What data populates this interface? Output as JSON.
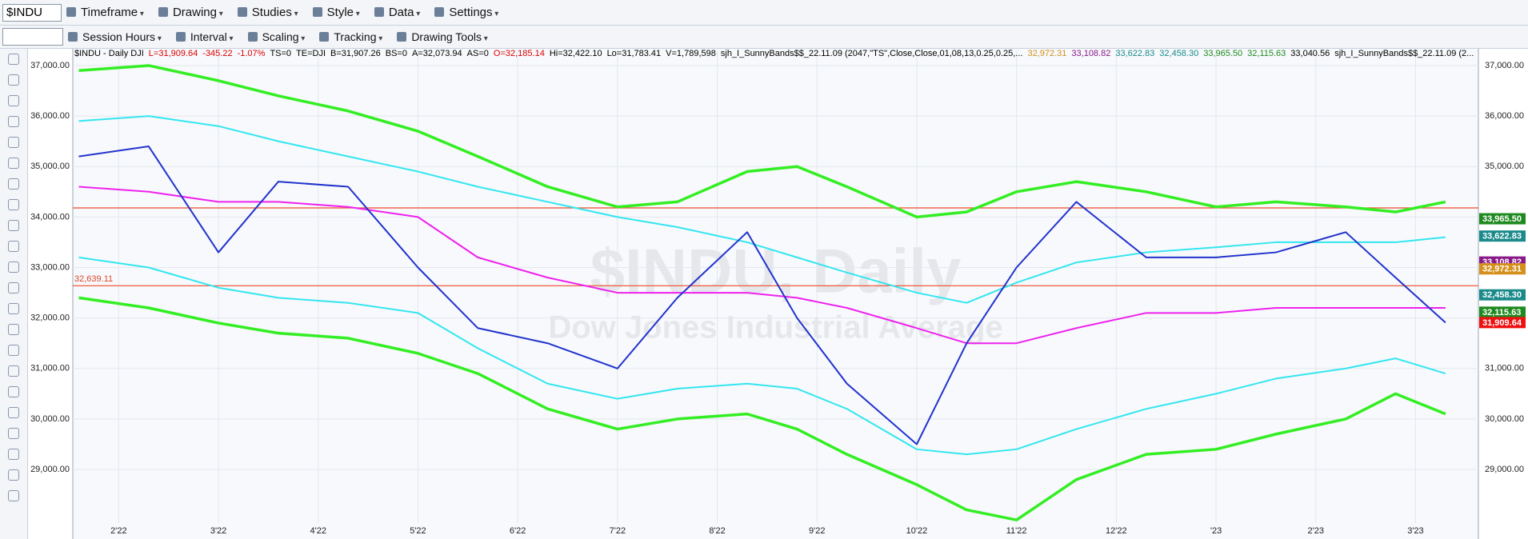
{
  "toolbar": {
    "symbol": "$INDU",
    "row1": [
      "Timeframe",
      "Drawing",
      "Studies",
      "Style",
      "Data",
      "Settings"
    ],
    "row2": [
      "Session Hours",
      "Interval",
      "Scaling",
      "Tracking",
      "Drawing Tools"
    ]
  },
  "header": [
    {
      "text": "$INDU - Daily  DJI",
      "color": "#000000"
    },
    {
      "text": "L=31,909.64",
      "color": "#dd0000"
    },
    {
      "text": "-345.22",
      "color": "#dd0000"
    },
    {
      "text": "-1.07%",
      "color": "#dd0000"
    },
    {
      "text": "TS=0",
      "color": "#000000"
    },
    {
      "text": "TE=DJI",
      "color": "#000000"
    },
    {
      "text": "B=31,907.26",
      "color": "#000000"
    },
    {
      "text": "BS=0",
      "color": "#000000"
    },
    {
      "text": "A=32,073.94",
      "color": "#000000"
    },
    {
      "text": "AS=0",
      "color": "#000000"
    },
    {
      "text": "O=32,185.14",
      "color": "#dd0000"
    },
    {
      "text": "Hi=32,422.10",
      "color": "#000000"
    },
    {
      "text": "Lo=31,783.41",
      "color": "#000000"
    },
    {
      "text": "V=1,789,598",
      "color": "#000000"
    },
    {
      "text": "sjh_I_SunnyBands$$_22.11.09 (2047,\"TS\",Close,Close,01,08,13,0.25,0.25,...",
      "color": "#000000"
    },
    {
      "text": "32,972.31",
      "color": "#d4901a"
    },
    {
      "text": "33,108.82",
      "color": "#8a1a8a"
    },
    {
      "text": "33,622.83",
      "color": "#1a8a8a"
    },
    {
      "text": "32,458.30",
      "color": "#1a8a8a"
    },
    {
      "text": "33,965.50",
      "color": "#1f8a1f"
    },
    {
      "text": "32,115.63",
      "color": "#1f8a1f"
    },
    {
      "text": "33,040.56",
      "color": "#000000"
    },
    {
      "text": "sjh_I_SunnyBands$$_22.11.09 (2...",
      "color": "#000000"
    }
  ],
  "watermark": {
    "title": "$INDU, Daily",
    "subtitle": "Dow Jones Industrial Average"
  },
  "chart_data": {
    "type": "line",
    "x": [
      1.6,
      2.3,
      3.0,
      3.6,
      4.3,
      5.0,
      5.6,
      6.3,
      7.0,
      7.6,
      8.3,
      8.8,
      9.3,
      10.0,
      10.5,
      11.0,
      11.6,
      12.3,
      13.0,
      13.6,
      14.3,
      14.8,
      15.3
    ],
    "xlim": [
      1.54,
      15.63
    ],
    "xticks": [
      {
        "value": 2,
        "label": "2'22"
      },
      {
        "value": 3,
        "label": "3'22"
      },
      {
        "value": 4,
        "label": "4'22"
      },
      {
        "value": 5,
        "label": "5'22"
      },
      {
        "value": 6,
        "label": "6'22"
      },
      {
        "value": 7,
        "label": "7'22"
      },
      {
        "value": 8,
        "label": "8'22"
      },
      {
        "value": 9,
        "label": "9'22"
      },
      {
        "value": 10,
        "label": "10'22"
      },
      {
        "value": 11,
        "label": "11'22"
      },
      {
        "value": 12,
        "label": "12'22"
      },
      {
        "value": 13,
        "label": "'23"
      },
      {
        "value": 14,
        "label": "2'23"
      },
      {
        "value": 15,
        "label": "3'23"
      }
    ],
    "ylim": [
      27940,
      37300
    ],
    "yticks": [
      {
        "value": 29000,
        "label": "29,000.00"
      },
      {
        "value": 30000,
        "label": "30,000.00"
      },
      {
        "value": 31000,
        "label": "31,000.00"
      },
      {
        "value": 32000,
        "label": "32,000.00"
      },
      {
        "value": 33000,
        "label": "33,000.00"
      },
      {
        "value": 34000,
        "label": "34,000.00"
      },
      {
        "value": 35000,
        "label": "35,000.00"
      },
      {
        "value": 36000,
        "label": "36,000.00"
      },
      {
        "value": 37000,
        "label": "37,000.00"
      }
    ],
    "grid": true,
    "series": [
      {
        "color": "#33ee22",
        "values": [
          36900,
          37000,
          36700,
          36400,
          36100,
          35700,
          35200,
          34600,
          34200,
          34300,
          34900,
          35000,
          34600,
          34000,
          34100,
          34500,
          34700,
          34500,
          34200,
          34300,
          34200,
          34100,
          34300
        ]
      },
      {
        "color": "#33ee22",
        "values": [
          32400,
          32200,
          31900,
          31700,
          31600,
          31300,
          30900,
          30200,
          29800,
          30000,
          30100,
          29800,
          29300,
          28700,
          28200,
          28000,
          28800,
          29300,
          29400,
          29700,
          30000,
          30500,
          30100
        ]
      },
      {
        "color": "#33e6f0",
        "values": [
          35900,
          36000,
          35800,
          35500,
          35200,
          34900,
          34600,
          34300,
          34000,
          33800,
          33500,
          33200,
          32900,
          32500,
          32300,
          32700,
          33100,
          33300,
          33400,
          33500,
          33500,
          33500,
          33600
        ]
      },
      {
        "color": "#33e6f0",
        "values": [
          33200,
          33000,
          32600,
          32400,
          32300,
          32100,
          31400,
          30700,
          30400,
          30600,
          30700,
          30600,
          30200,
          29400,
          29300,
          29400,
          29800,
          30200,
          30500,
          30800,
          31000,
          31200,
          30900
        ]
      },
      {
        "color": "#ee22ee",
        "values": [
          34600,
          34500,
          34300,
          34300,
          34200,
          34000,
          33200,
          32800,
          32500,
          32500,
          32500,
          32400,
          32200,
          31800,
          31500,
          31500,
          31800,
          32100,
          32100,
          32200,
          32200,
          32200,
          32200
        ]
      },
      {
        "color": "#2233cc",
        "values": [
          35200,
          35400,
          33300,
          34700,
          34600,
          33000,
          31800,
          31500,
          31000,
          32400,
          33700,
          32000,
          30700,
          29500,
          31500,
          33000,
          34300,
          33200,
          33200,
          33300,
          33700,
          32800,
          31909
        ]
      }
    ],
    "hlines": [
      {
        "value": 34180
      },
      {
        "value": 32639.11,
        "label": "32,639.11"
      }
    ],
    "price_labels": [
      {
        "value": 33965.5,
        "label": "33,965.50",
        "color": "#1f8a1f"
      },
      {
        "value": 33622.83,
        "label": "33,622.83",
        "color": "#1a8a8a"
      },
      {
        "value": 33108.82,
        "label": "33,108.82",
        "color": "#8a1a8a"
      },
      {
        "value": 32972.31,
        "label": "32,972.31",
        "color": "#d4901a"
      },
      {
        "value": 32458.3,
        "label": "32,458.30",
        "color": "#1a8a8a"
      },
      {
        "value": 32115.63,
        "label": "32,115.63",
        "color": "#1f8a1f"
      },
      {
        "value": 31909.64,
        "label": "31,909.64",
        "color": "#ee1111"
      }
    ]
  }
}
